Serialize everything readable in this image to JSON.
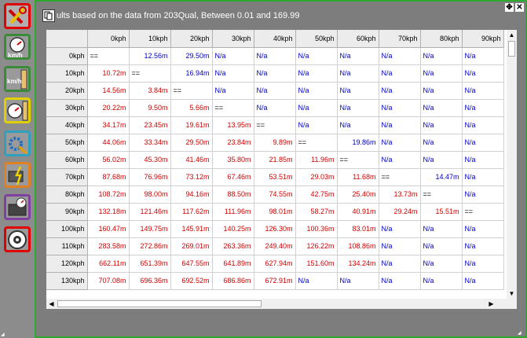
{
  "title": "ults based on the data from 203Qual, Between 0.01 and 169.99",
  "columns": [
    "0kph",
    "10kph",
    "20kph",
    "30kph",
    "40kph",
    "50kph",
    "60kph",
    "70kph",
    "80kph",
    "90kph"
  ],
  "rows": [
    {
      "label": "0kph",
      "cells": [
        "==",
        "12.56m",
        "29.50m",
        "N/a",
        "N/a",
        "N/a",
        "N/a",
        "N/a",
        "N/a",
        "N/a"
      ]
    },
    {
      "label": "10kph",
      "cells": [
        "10.72m",
        "==",
        "16.94m",
        "N/a",
        "N/a",
        "N/a",
        "N/a",
        "N/a",
        "N/a",
        "N/a"
      ]
    },
    {
      "label": "20kph",
      "cells": [
        "14.56m",
        "3.84m",
        "==",
        "N/a",
        "N/a",
        "N/a",
        "N/a",
        "N/a",
        "N/a",
        "N/a"
      ]
    },
    {
      "label": "30kph",
      "cells": [
        "20.22m",
        "9.50m",
        "5.66m",
        "==",
        "N/a",
        "N/a",
        "N/a",
        "N/a",
        "N/a",
        "N/a"
      ]
    },
    {
      "label": "40kph",
      "cells": [
        "34.17m",
        "23.45m",
        "19.61m",
        "13.95m",
        "==",
        "N/a",
        "N/a",
        "N/a",
        "N/a",
        "N/a"
      ]
    },
    {
      "label": "50kph",
      "cells": [
        "44.06m",
        "33.34m",
        "29.50m",
        "23.84m",
        "9.89m",
        "==",
        "19.86m",
        "N/a",
        "N/a",
        "N/a"
      ]
    },
    {
      "label": "60kph",
      "cells": [
        "56.02m",
        "45.30m",
        "41.46m",
        "35.80m",
        "21.85m",
        "11.96m",
        "==",
        "N/a",
        "N/a",
        "N/a"
      ]
    },
    {
      "label": "70kph",
      "cells": [
        "87.68m",
        "76.96m",
        "73.12m",
        "67.46m",
        "53.51m",
        "29.03m",
        "11.68m",
        "==",
        "14.47m",
        "N/a"
      ]
    },
    {
      "label": "80kph",
      "cells": [
        "108.72m",
        "98.00m",
        "94.16m",
        "88.50m",
        "74.55m",
        "42.75m",
        "25.40m",
        "13.73m",
        "==",
        "N/a"
      ]
    },
    {
      "label": "90kph",
      "cells": [
        "132.18m",
        "121.46m",
        "117.62m",
        "111.96m",
        "98.01m",
        "58.27m",
        "40.91m",
        "29.24m",
        "15.51m",
        "=="
      ]
    },
    {
      "label": "100kph",
      "cells": [
        "160.47m",
        "149.75m",
        "145.91m",
        "140.25m",
        "126.30m",
        "100.36m",
        "83.01m",
        "N/a",
        "N/a",
        "N/a"
      ]
    },
    {
      "label": "110kph",
      "cells": [
        "283.58m",
        "272.86m",
        "269.01m",
        "263.36m",
        "249.40m",
        "126.22m",
        "108.86m",
        "N/a",
        "N/a",
        "N/a"
      ]
    },
    {
      "label": "120kph",
      "cells": [
        "662.11m",
        "651.39m",
        "647.55m",
        "641.89m",
        "627.94m",
        "151.60m",
        "134.24m",
        "N/a",
        "N/a",
        "N/a"
      ]
    },
    {
      "label": "130kph",
      "cells": [
        "707.08m",
        "696.36m",
        "692.52m",
        "686.86m",
        "672.91m",
        "N/a",
        "N/a",
        "N/a",
        "N/a",
        "N/a"
      ]
    }
  ],
  "colors": {
    "value": "#d00000",
    "na": "#0000c8",
    "eq": "#000000",
    "panel_border": "#2fa82f"
  },
  "sidebar": [
    {
      "name": "tools-icon",
      "border": "#e00000"
    },
    {
      "name": "speed-gauge-icon",
      "border": "#3a8a3a"
    },
    {
      "name": "speed-ruler-icon",
      "border": "#3a8a3a"
    },
    {
      "name": "gauge-ruler-icon",
      "border": "#e0d000"
    },
    {
      "name": "settings-gear-icon",
      "border": "#30a0c0"
    },
    {
      "name": "engine-power-icon",
      "border": "#e08020"
    },
    {
      "name": "dashboard-icon",
      "border": "#8040a0"
    },
    {
      "name": "wheel-brake-icon",
      "border": "#e00000"
    }
  ]
}
